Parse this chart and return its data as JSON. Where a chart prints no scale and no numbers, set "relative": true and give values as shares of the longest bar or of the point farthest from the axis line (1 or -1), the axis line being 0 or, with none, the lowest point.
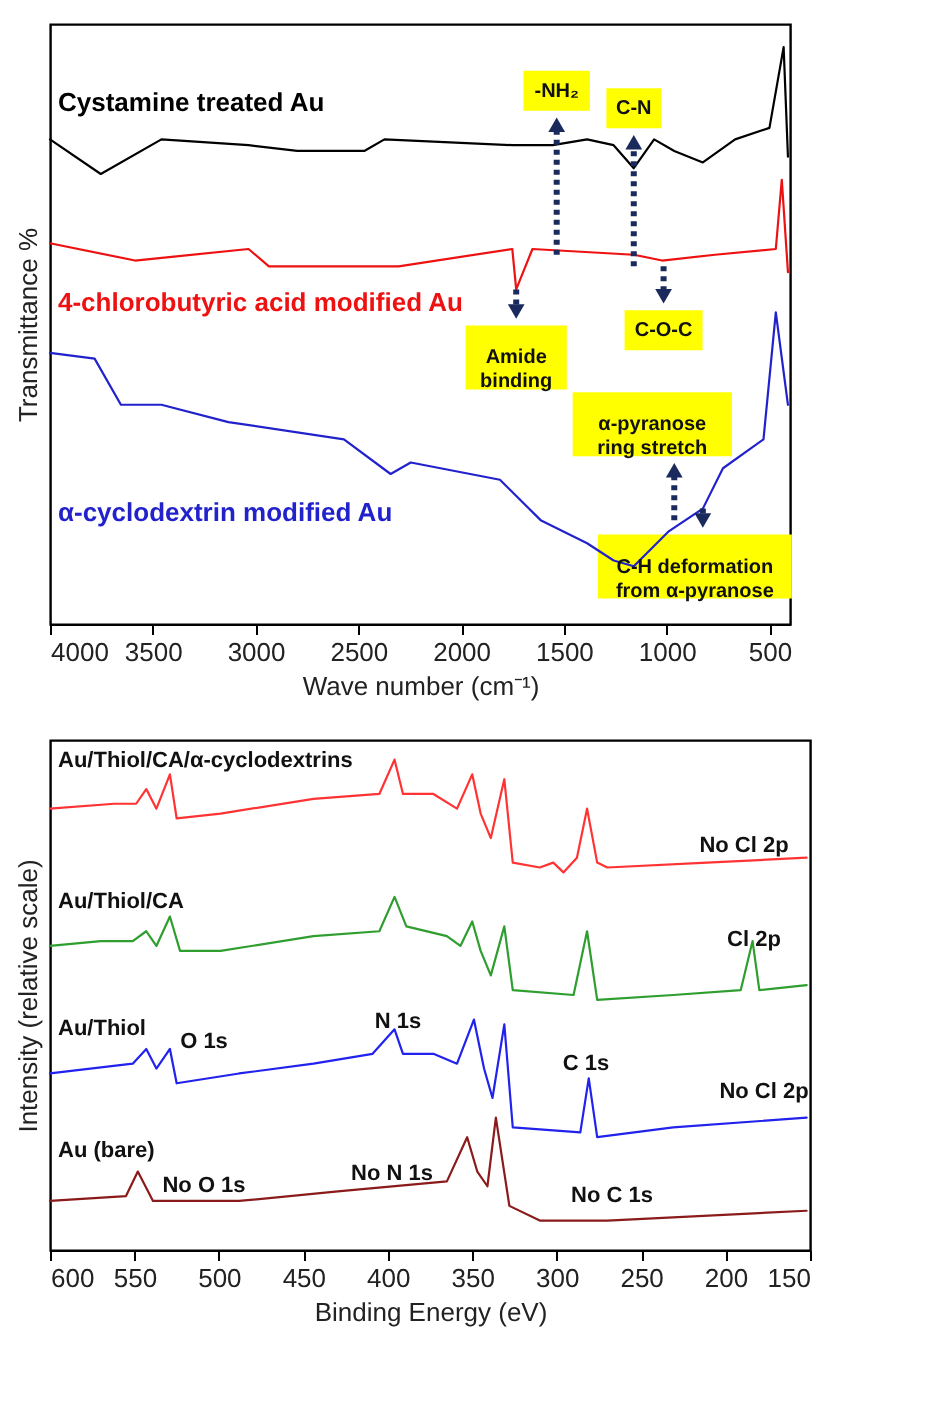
{
  "chart_data": [
    {
      "type": "line",
      "relative": true,
      "xlabel": "Wave number (cm⁻¹)",
      "ylabel": "Transmittance %",
      "xlim": [
        4000,
        400
      ],
      "xticks": [
        4000,
        3500,
        3000,
        2500,
        2000,
        1500,
        1000,
        500
      ],
      "series": [
        {
          "name": "Cystamine treated Au",
          "color": "#000000",
          "x": [
            4000,
            3753,
            3458,
            3034,
            2797,
            2471,
            2373,
            1751,
            1554,
            1387,
            1258,
            1160,
            1061,
            963,
            824,
            667,
            500,
            431,
            410
          ],
          "values": [
            0.84,
            0.78,
            0.84,
            0.83,
            0.82,
            0.82,
            0.84,
            0.83,
            0.83,
            0.84,
            0.83,
            0.79,
            0.84,
            0.82,
            0.8,
            0.84,
            0.86,
            1.0,
            0.81
          ]
        },
        {
          "name": "4-chlorobutyric acid modified Au",
          "color": "#ee1111",
          "x": [
            4000,
            3586,
            3034,
            2935,
            2304,
            1751,
            1732,
            1653,
            1160,
            1022,
            765,
            469,
            440,
            410
          ],
          "values": [
            0.66,
            0.63,
            0.65,
            0.62,
            0.62,
            0.65,
            0.58,
            0.65,
            0.64,
            0.63,
            0.64,
            0.65,
            0.77,
            0.61
          ]
        },
        {
          "name": "α-cyclodextrin modified Au",
          "color": "#2222cc",
          "x": [
            4000,
            3783,
            3655,
            3458,
            3132,
            2570,
            2343,
            2245,
            1811,
            1613,
            1387,
            1258,
            1160,
            992,
            824,
            726,
            529,
            469,
            410
          ],
          "values": [
            0.47,
            0.46,
            0.38,
            0.38,
            0.35,
            0.32,
            0.26,
            0.28,
            0.25,
            0.18,
            0.14,
            0.11,
            0.1,
            0.16,
            0.2,
            0.27,
            0.32,
            0.54,
            0.38
          ]
        }
      ],
      "annotations": [
        {
          "text": "-NH₂",
          "x": 1535,
          "y": 0.64
        },
        {
          "text": "C-N",
          "x": 1160,
          "y": 0.62
        },
        {
          "text": "Amide binding",
          "x": 1732,
          "y": 0.58
        },
        {
          "text": "C-O-C",
          "x": 1015,
          "y": 0.62
        },
        {
          "text": "α-pyranose ring stretch",
          "x": 963,
          "y": 0.18
        },
        {
          "text": "C-H deformation from α-pyranose",
          "x": 824,
          "y": 0.2
        }
      ]
    },
    {
      "type": "line",
      "relative": true,
      "xlabel": "Binding Energy (eV)",
      "ylabel": "Intensity (relative scale)",
      "xlim": [
        600,
        150
      ],
      "xticks": [
        600,
        550,
        500,
        450,
        400,
        350,
        300,
        250,
        200,
        150
      ],
      "series": [
        {
          "name": "Au/Thiol/CA/α-cyclodextrins",
          "color": "#ff3333",
          "x": [
            600,
            562,
            549,
            543,
            537,
            529,
            525,
            499,
            444,
            405,
            396,
            391,
            373,
            359,
            350,
            345,
            339,
            331,
            326,
            310,
            302,
            296,
            288,
            282,
            276,
            270,
            211,
            152
          ],
          "values": [
            0.9,
            0.91,
            0.91,
            0.94,
            0.9,
            0.97,
            0.88,
            0.89,
            0.92,
            0.93,
            1.0,
            0.93,
            0.93,
            0.9,
            0.97,
            0.89,
            0.84,
            0.96,
            0.79,
            0.78,
            0.79,
            0.77,
            0.8,
            0.9,
            0.79,
            0.78,
            0.79,
            0.8
          ]
        },
        {
          "name": "Au/Thiol/CA",
          "color": "#2e9e2e",
          "x": [
            600,
            570,
            551,
            543,
            537,
            529,
            523,
            499,
            444,
            405,
            396,
            389,
            365,
            357,
            350,
            345,
            339,
            331,
            326,
            290,
            282,
            276,
            231,
            191,
            184,
            180,
            152
          ],
          "values": [
            0.62,
            0.63,
            0.63,
            0.65,
            0.62,
            0.68,
            0.61,
            0.61,
            0.64,
            0.65,
            0.72,
            0.66,
            0.64,
            0.62,
            0.67,
            0.61,
            0.56,
            0.66,
            0.53,
            0.52,
            0.65,
            0.51,
            0.52,
            0.53,
            0.63,
            0.53,
            0.54
          ]
        },
        {
          "name": "Au/Thiol",
          "color": "#2222ee",
          "x": [
            600,
            551,
            543,
            537,
            529,
            525,
            488,
            444,
            409,
            396,
            391,
            373,
            359,
            349,
            343,
            338,
            331,
            326,
            286,
            281,
            276,
            231,
            152
          ],
          "values": [
            0.36,
            0.38,
            0.41,
            0.37,
            0.41,
            0.34,
            0.36,
            0.38,
            0.4,
            0.45,
            0.4,
            0.4,
            0.38,
            0.47,
            0.37,
            0.31,
            0.46,
            0.25,
            0.24,
            0.35,
            0.23,
            0.25,
            0.27
          ]
        },
        {
          "name": "Au (bare)",
          "color": "#8b1a1a",
          "x": [
            600,
            555,
            548,
            539,
            488,
            428,
            365,
            353,
            347,
            341,
            336,
            328,
            310,
            270,
            152
          ],
          "values": [
            0.1,
            0.11,
            0.16,
            0.1,
            0.1,
            0.12,
            0.14,
            0.23,
            0.16,
            0.13,
            0.27,
            0.09,
            0.06,
            0.06,
            0.08
          ]
        }
      ],
      "annotations": [
        "No Cl 2p",
        "Cl 2p",
        "O 1s",
        "N 1s",
        "C 1s",
        "No Cl 2p",
        "No O 1s",
        "No N 1s",
        "No C 1s"
      ]
    }
  ]
}
